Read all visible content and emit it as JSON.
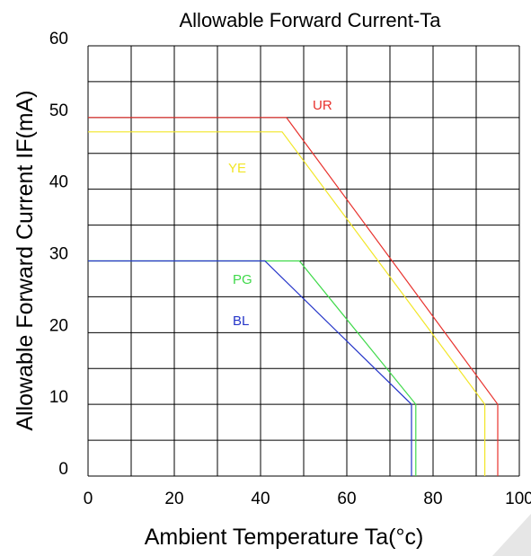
{
  "chart_data": {
    "type": "line",
    "title": "Allowable Forward Current-Ta",
    "xlabel": "Ambient Temperature  Ta(°c)",
    "ylabel": "Allowable Forward Current IF(mA)",
    "xlim": [
      0,
      100
    ],
    "ylim": [
      0,
      60
    ],
    "xticks": [
      0,
      20,
      40,
      60,
      80,
      100
    ],
    "yticks": [
      0,
      10,
      20,
      30,
      40,
      50,
      60
    ],
    "grid": true,
    "series": [
      {
        "name": "UR",
        "color": "#e8322d",
        "x": [
          0,
          46,
          95,
          95
        ],
        "y": [
          50,
          50,
          10,
          0
        ]
      },
      {
        "name": "YE",
        "color": "#f2e627",
        "x": [
          0,
          45,
          92,
          92
        ],
        "y": [
          48,
          48,
          10,
          0
        ]
      },
      {
        "name": "PG",
        "color": "#3fd94a",
        "x": [
          0,
          49,
          76,
          76
        ],
        "y": [
          30,
          30,
          10,
          0
        ]
      },
      {
        "name": "BL",
        "color": "#2434c8",
        "x": [
          0,
          41,
          75,
          75
        ],
        "y": [
          30,
          30,
          10,
          0
        ]
      }
    ]
  }
}
